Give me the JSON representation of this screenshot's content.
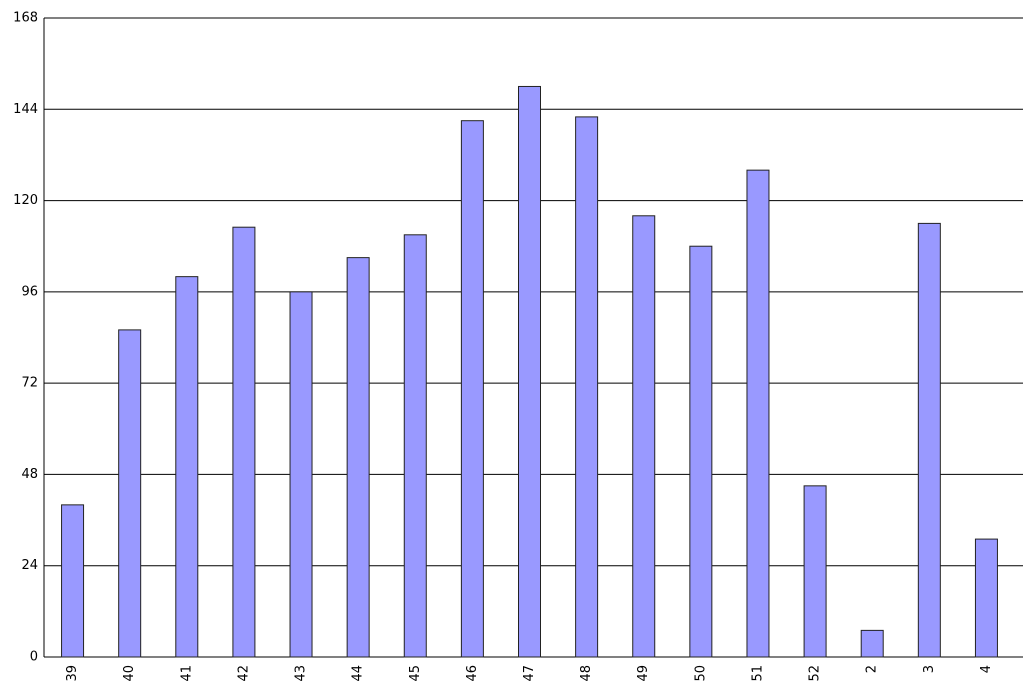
{
  "chart_data": {
    "type": "bar",
    "categories": [
      "39",
      "40",
      "41",
      "42",
      "43",
      "44",
      "45",
      "46",
      "47",
      "48",
      "49",
      "50",
      "51",
      "52",
      "2",
      "3",
      "4"
    ],
    "values": [
      40,
      86,
      100,
      113,
      96,
      105,
      111,
      141,
      150,
      142,
      116,
      108,
      128,
      45,
      7,
      114,
      31
    ],
    "color": "#9999ff",
    "ylim": [
      0,
      168
    ],
    "yticks": [
      0,
      24,
      48,
      72,
      96,
      120,
      144,
      168
    ],
    "grid": true
  }
}
